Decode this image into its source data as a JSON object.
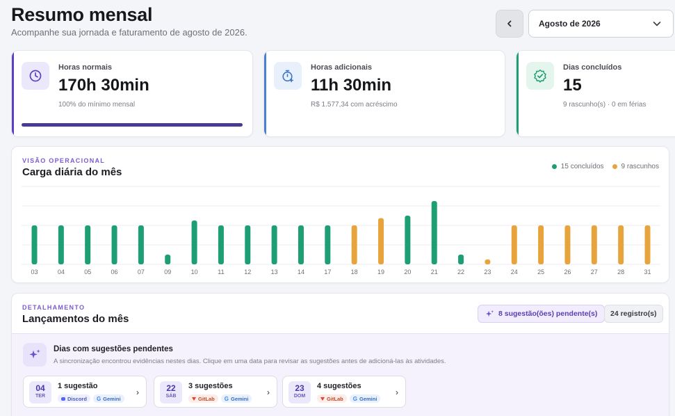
{
  "header": {
    "title": "Resumo mensal",
    "subtitle": "Acompanhe sua jornada e faturamento de agosto de 2026.",
    "month_selected": "Agosto de 2026"
  },
  "stats": [
    {
      "label": "Horas normais",
      "value": "170h 30min",
      "note": "100% do mínimo mensal",
      "progress": 1.0,
      "accent": "#5b3fc0",
      "icon": "clock-icon"
    },
    {
      "label": "Horas adicionais",
      "value": "11h 30min",
      "note": "R$ 1.577,34 com acréscimo",
      "accent": "#4a7fd6",
      "icon": "stopwatch-plus-icon"
    },
    {
      "label": "Dias concluídos",
      "value": "15",
      "note": "9 rascunho(s) · 0 em férias",
      "accent": "#1e9e74",
      "icon": "badge-check-icon"
    }
  ],
  "chart_section": {
    "overline": "VISÃO OPERACIONAL",
    "title": "Carga diária do mês",
    "legend_done": "15 concluídos",
    "legend_draft": "9 rascunhos"
  },
  "chart_data": {
    "type": "bar",
    "categories": [
      "03",
      "04",
      "05",
      "06",
      "07",
      "09",
      "10",
      "11",
      "12",
      "13",
      "14",
      "17",
      "18",
      "19",
      "20",
      "21",
      "22",
      "23",
      "24",
      "25",
      "26",
      "27",
      "28",
      "31"
    ],
    "series": [
      {
        "name": "15 concluídos",
        "color": "#1e9e74",
        "values": [
          8,
          8,
          8,
          8,
          8,
          2,
          9,
          8,
          8,
          8,
          8,
          8,
          null,
          null,
          10,
          13,
          2,
          null,
          null,
          null,
          null,
          null,
          null,
          null
        ]
      },
      {
        "name": "9 rascunhos",
        "color": "#e8a43c",
        "values": [
          null,
          null,
          null,
          null,
          null,
          null,
          null,
          null,
          null,
          null,
          null,
          null,
          8,
          9.5,
          null,
          null,
          null,
          1,
          8,
          8,
          8,
          8,
          8,
          8
        ]
      }
    ],
    "ylim": [
      0,
      16
    ],
    "grid": true
  },
  "list_section": {
    "overline": "DETALHAMENTO",
    "title": "Lançamentos do mês",
    "pending_badge": "8 sugestão(ões) pendente(s)",
    "count_badge": "24 registro(s)",
    "suggest_title": "Dias com sugestões pendentes",
    "suggest_text": "A sincronização encontrou evidências nestes dias. Clique em uma data para revisar as sugestões antes de adicioná-las às atividades.",
    "days": [
      {
        "day": "04",
        "dow": "TER",
        "count": "1 sugestão",
        "tags": [
          {
            "label": "Discord",
            "kind": "discord"
          },
          {
            "label": "Gemini",
            "kind": "gemini"
          }
        ]
      },
      {
        "day": "22",
        "dow": "SÁB",
        "count": "3 sugestões",
        "tags": [
          {
            "label": "GitLab",
            "kind": "gitlab"
          },
          {
            "label": "Gemini",
            "kind": "gemini"
          }
        ]
      },
      {
        "day": "23",
        "dow": "DOM",
        "count": "4 sugestões",
        "tags": [
          {
            "label": "GitLab",
            "kind": "gitlab"
          },
          {
            "label": "Gemini",
            "kind": "gemini"
          }
        ]
      }
    ]
  }
}
